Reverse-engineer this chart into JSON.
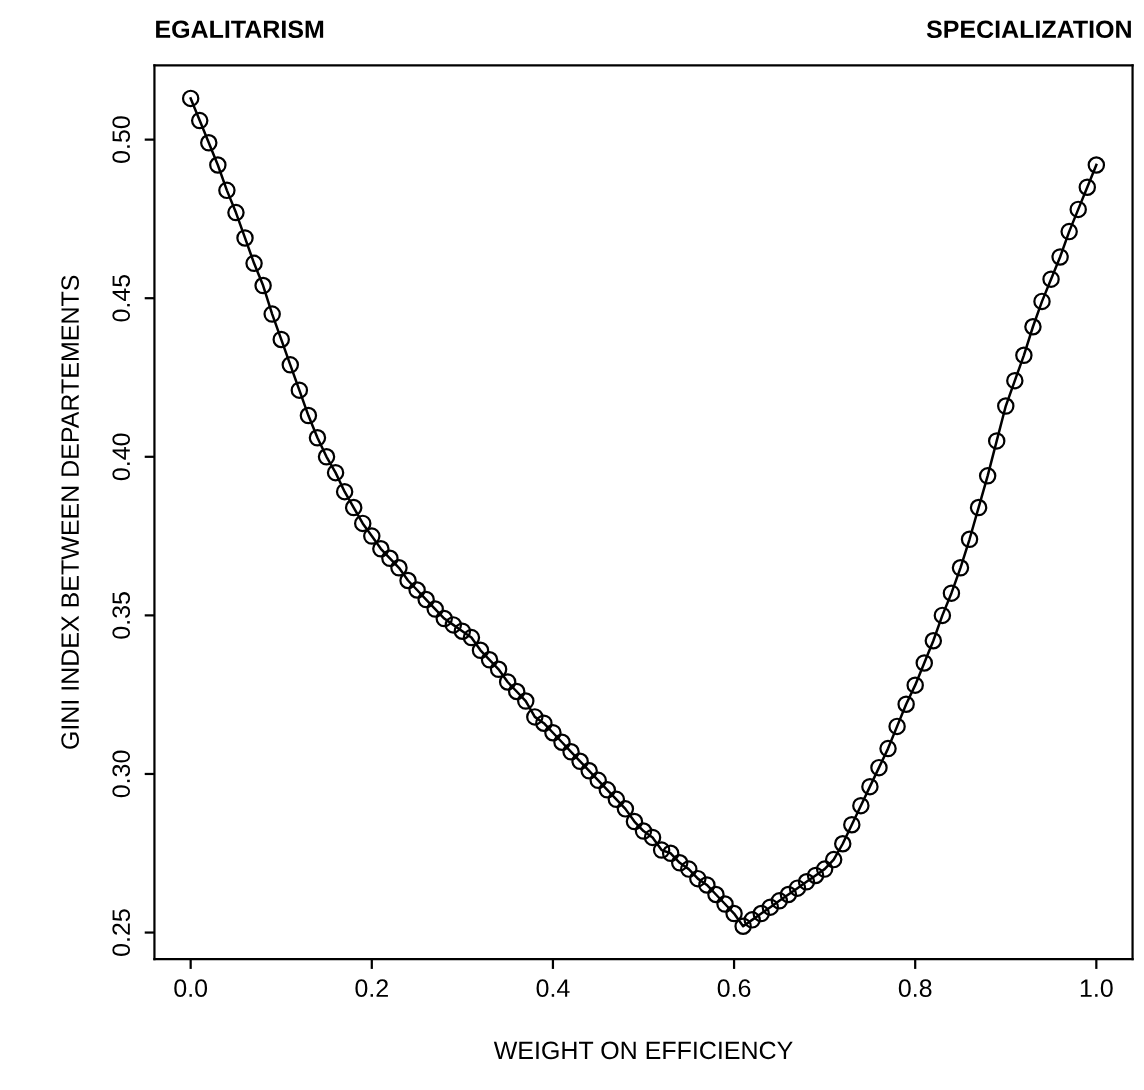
{
  "chart_data": {
    "type": "line",
    "xlabel": "WEIGHT ON EFFICIENCY",
    "ylabel": "GINI INDEX BETWEEN DEPARTEMENTS",
    "annotations": [
      "EGALITARISM",
      "SPECIALIZATION"
    ],
    "x": [
      0.0,
      0.01,
      0.02,
      0.03,
      0.04,
      0.05,
      0.06,
      0.07,
      0.08,
      0.09,
      0.1,
      0.11,
      0.12,
      0.13,
      0.14,
      0.15,
      0.16,
      0.17,
      0.18,
      0.19,
      0.2,
      0.21,
      0.22,
      0.23,
      0.24,
      0.25,
      0.26,
      0.27,
      0.28,
      0.29,
      0.3,
      0.31,
      0.32,
      0.33,
      0.34,
      0.35,
      0.36,
      0.37,
      0.38,
      0.39,
      0.4,
      0.41,
      0.42,
      0.43,
      0.44,
      0.45,
      0.46,
      0.47,
      0.48,
      0.49,
      0.5,
      0.51,
      0.52,
      0.53,
      0.54,
      0.55,
      0.56,
      0.57,
      0.58,
      0.59,
      0.6,
      0.61,
      0.62,
      0.63,
      0.64,
      0.65,
      0.66,
      0.67,
      0.68,
      0.69,
      0.7,
      0.71,
      0.72,
      0.73,
      0.74,
      0.75,
      0.76,
      0.77,
      0.78,
      0.79,
      0.8,
      0.81,
      0.82,
      0.83,
      0.84,
      0.85,
      0.86,
      0.87,
      0.88,
      0.89,
      0.9,
      0.91,
      0.92,
      0.93,
      0.94,
      0.95,
      0.96,
      0.97,
      0.98,
      0.99,
      1.0
    ],
    "series": [
      {
        "color": "#000000",
        "values": [
          0.513,
          0.506,
          0.499,
          0.492,
          0.484,
          0.477,
          0.469,
          0.461,
          0.454,
          0.445,
          0.437,
          0.429,
          0.421,
          0.413,
          0.406,
          0.4,
          0.395,
          0.389,
          0.384,
          0.379,
          0.375,
          0.371,
          0.368,
          0.365,
          0.361,
          0.358,
          0.355,
          0.352,
          0.349,
          0.347,
          0.345,
          0.343,
          0.339,
          0.336,
          0.333,
          0.329,
          0.326,
          0.323,
          0.318,
          0.316,
          0.313,
          0.31,
          0.307,
          0.304,
          0.301,
          0.298,
          0.295,
          0.292,
          0.289,
          0.285,
          0.282,
          0.28,
          0.276,
          0.275,
          0.272,
          0.27,
          0.267,
          0.265,
          0.262,
          0.259,
          0.256,
          0.252,
          0.254,
          0.256,
          0.258,
          0.26,
          0.262,
          0.264,
          0.266,
          0.268,
          0.27,
          0.273,
          0.278,
          0.284,
          0.29,
          0.296,
          0.302,
          0.308,
          0.315,
          0.322,
          0.328,
          0.335,
          0.342,
          0.35,
          0.357,
          0.365,
          0.374,
          0.384,
          0.394,
          0.405,
          0.416,
          0.424,
          0.432,
          0.441,
          0.449,
          0.456,
          0.463,
          0.471,
          0.478,
          0.485,
          0.492
        ]
      }
    ],
    "marker": "circle",
    "line_style": "solid",
    "grid": false,
    "legend": false,
    "xlim": [
      -0.04,
      1.04
    ],
    "ylim": [
      0.2416,
      0.5234
    ],
    "xticks": [
      {
        "value": 0,
        "label": "0.0"
      },
      0.2,
      0.4,
      0.6,
      0.8,
      {
        "value": 1,
        "label": "1.0"
      }
    ],
    "yticks": [
      0.25,
      {
        "value": 0.3,
        "label": "0.30"
      },
      0.35,
      {
        "value": 0.4,
        "label": "0.40"
      },
      0.45,
      {
        "value": 0.5,
        "label": "0.50"
      }
    ]
  }
}
